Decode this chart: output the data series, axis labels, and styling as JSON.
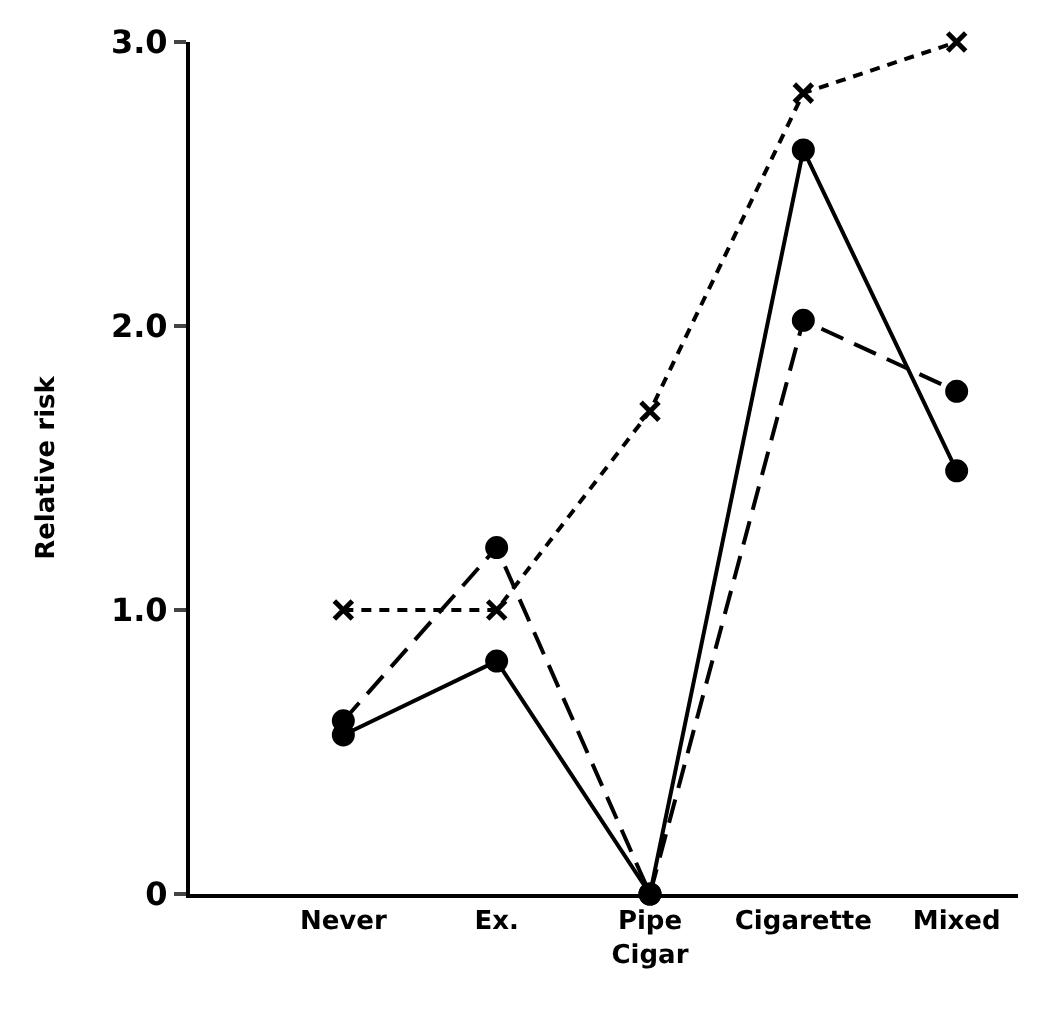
{
  "chart_data": {
    "type": "line",
    "ylabel": "Relative risk",
    "categories": [
      "Never",
      "Ex.",
      "Pipe\nCigar",
      "Cigarette",
      "Mixed"
    ],
    "ylim": [
      0,
      3.0
    ],
    "yticks": [
      {
        "value": 0,
        "label": "0"
      },
      {
        "value": 1,
        "label": "1.0"
      },
      {
        "value": 2,
        "label": "2.0"
      },
      {
        "value": 3,
        "label": "3.0"
      }
    ],
    "series": [
      {
        "color": "#000000",
        "marker": "cross",
        "line_style": "dotted",
        "values": [
          1.0,
          1.0,
          1.7,
          2.82,
          3.0
        ]
      },
      {
        "color": "#000000",
        "marker": "circle",
        "line_style": "dashed",
        "values": [
          0.61,
          1.22,
          0,
          2.02,
          1.77
        ]
      },
      {
        "color": "#000000",
        "marker": "circle",
        "line_style": "solid",
        "values": [
          0.56,
          0.82,
          0,
          2.62,
          1.49
        ]
      }
    ]
  }
}
